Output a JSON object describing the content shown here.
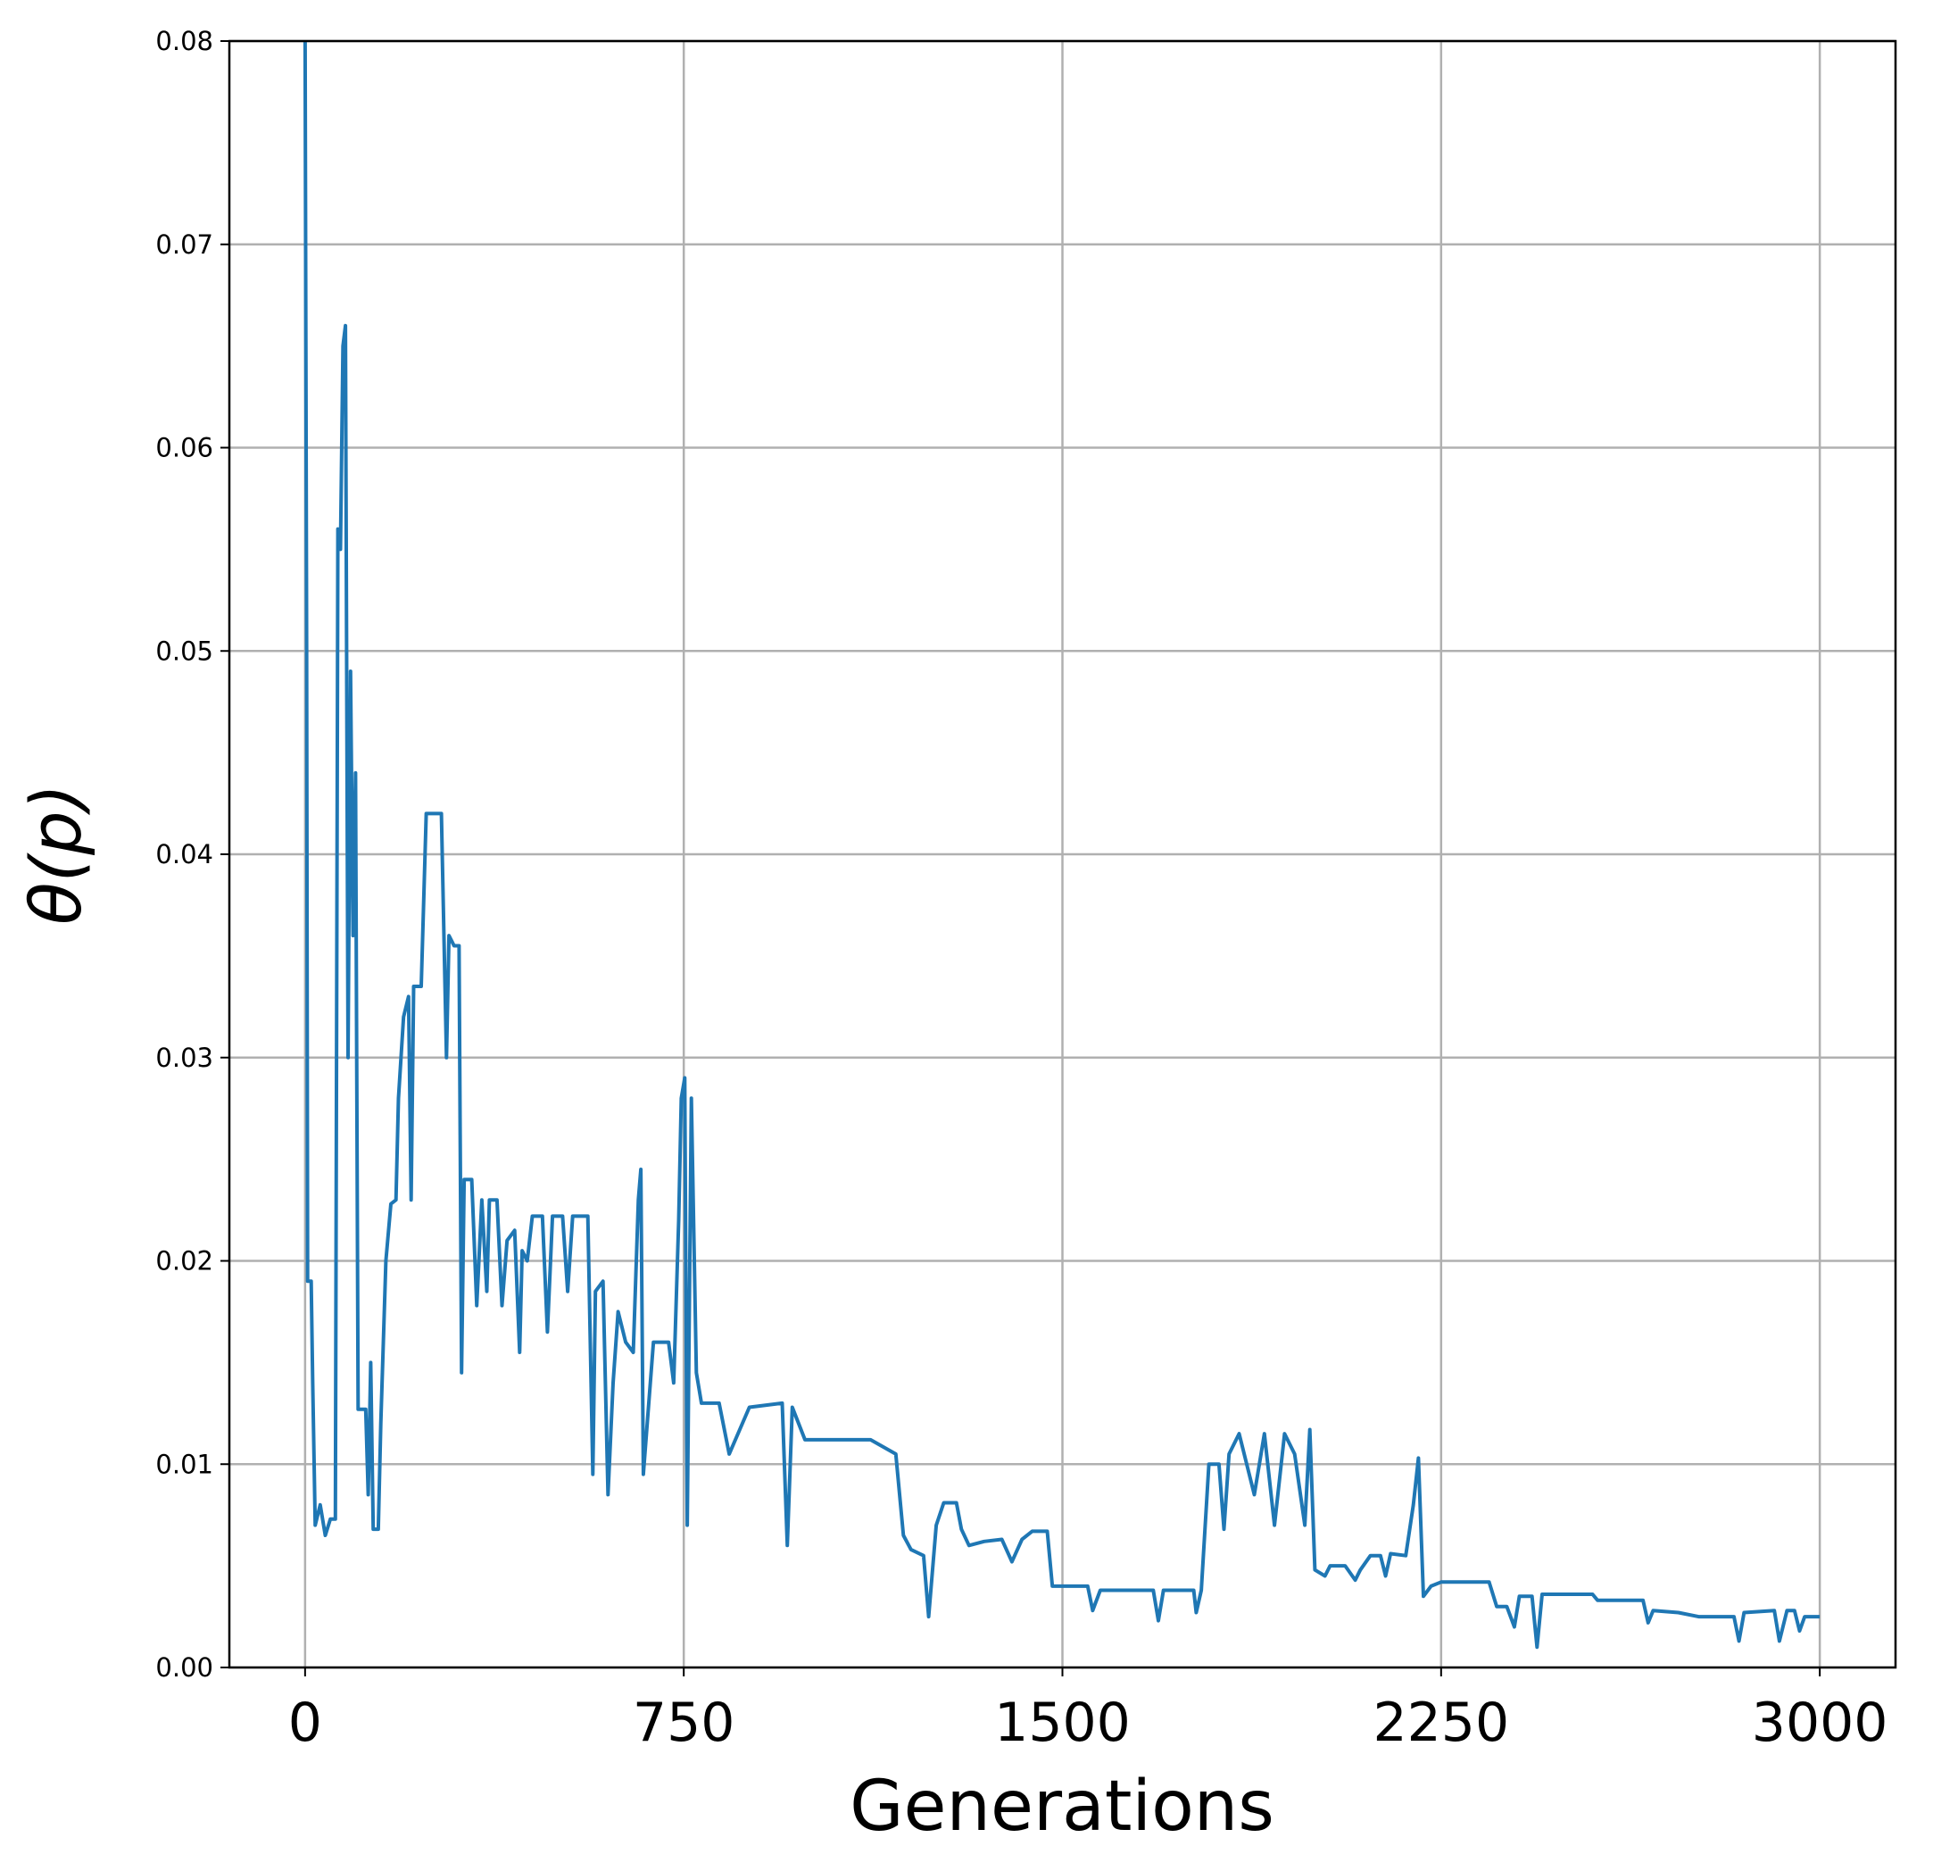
{
  "chart_data": {
    "type": "line",
    "xlabel": "Generations",
    "ylabel": "θ(p)",
    "xlim": [
      -150,
      3150
    ],
    "ylim": [
      0,
      0.08
    ],
    "xticks": [
      0,
      750,
      1500,
      2250,
      3000
    ],
    "yticks": [
      {
        "value": 0,
        "label": "0.00"
      },
      {
        "value": 0.01,
        "label": "0.01"
      },
      {
        "value": 0.02,
        "label": "0.02"
      },
      {
        "value": 0.03,
        "label": "0.03"
      },
      {
        "value": 0.04,
        "label": "0.04"
      },
      {
        "value": 0.05,
        "label": "0.05"
      },
      {
        "value": 0.06,
        "label": "0.06"
      },
      {
        "value": 0.07,
        "label": "0.07"
      },
      {
        "value": 0.08,
        "label": "0.08"
      }
    ],
    "grid": true,
    "series": [
      {
        "color": "#1f77b4",
        "x": [
          0,
          3,
          5,
          12,
          15,
          20,
          30,
          40,
          50,
          60,
          65,
          70,
          75,
          80,
          85,
          90,
          95,
          100,
          105,
          120,
          125,
          130,
          135,
          145,
          150,
          160,
          170,
          180,
          185,
          195,
          205,
          210,
          215,
          230,
          240,
          270,
          280,
          285,
          295,
          305,
          310,
          315,
          330,
          340,
          350,
          360,
          365,
          380,
          390,
          400,
          415,
          425,
          430,
          440,
          450,
          470,
          480,
          490,
          510,
          520,
          530,
          545,
          560,
          570,
          575,
          590,
          600,
          610,
          620,
          635,
          650,
          660,
          665,
          670,
          690,
          720,
          730,
          740,
          745,
          752,
          757,
          765,
          775,
          785,
          820,
          840,
          880,
          945,
          955,
          965,
          990,
          1120,
          1170,
          1185,
          1200,
          1225,
          1235,
          1250,
          1265,
          1290,
          1300,
          1315,
          1345,
          1380,
          1400,
          1420,
          1440,
          1470,
          1480,
          1550,
          1560,
          1575,
          1680,
          1690,
          1700,
          1760,
          1765,
          1775,
          1790,
          1810,
          1820,
          1830,
          1850,
          1880,
          1900,
          1920,
          1940,
          1960,
          1980,
          1990,
          2000,
          2020,
          2030,
          2060,
          2080,
          2090,
          2110,
          2130,
          2140,
          2150,
          2180,
          2195,
          2205,
          2215,
          2230,
          2250,
          2345,
          2360,
          2380,
          2395,
          2405,
          2430,
          2440,
          2450,
          2550,
          2560,
          2650,
          2660,
          2670,
          2720,
          2760,
          2830,
          2840,
          2850,
          2910,
          2920,
          2935,
          2950,
          2960,
          2970,
          3000
        ],
        "values": [
          0.08,
          0.05,
          0.019,
          0.019,
          0.014,
          0.007,
          0.008,
          0.0065,
          0.0073,
          0.0073,
          0.056,
          0.055,
          0.065,
          0.066,
          0.03,
          0.049,
          0.036,
          0.044,
          0.0127,
          0.0127,
          0.0085,
          0.015,
          0.0068,
          0.0068,
          0.012,
          0.02,
          0.0228,
          0.023,
          0.028,
          0.032,
          0.033,
          0.023,
          0.0335,
          0.0335,
          0.042,
          0.042,
          0.03,
          0.036,
          0.0355,
          0.0355,
          0.0145,
          0.024,
          0.024,
          0.0178,
          0.023,
          0.0185,
          0.023,
          0.023,
          0.0178,
          0.021,
          0.0215,
          0.0155,
          0.0205,
          0.02,
          0.0222,
          0.0222,
          0.0165,
          0.0222,
          0.0222,
          0.0185,
          0.0222,
          0.0222,
          0.0222,
          0.0095,
          0.0185,
          0.019,
          0.0085,
          0.014,
          0.0175,
          0.016,
          0.0155,
          0.023,
          0.0245,
          0.0095,
          0.016,
          0.016,
          0.014,
          0.022,
          0.028,
          0.029,
          0.007,
          0.028,
          0.0145,
          0.013,
          0.013,
          0.0105,
          0.0128,
          0.013,
          0.006,
          0.0128,
          0.0112,
          0.0112,
          0.0105,
          0.0065,
          0.0058,
          0.0055,
          0.0025,
          0.007,
          0.0081,
          0.0081,
          0.0068,
          0.006,
          0.0062,
          0.0063,
          0.0052,
          0.0063,
          0.0067,
          0.0067,
          0.004,
          0.004,
          0.0028,
          0.0038,
          0.0038,
          0.0023,
          0.0038,
          0.0038,
          0.0027,
          0.0038,
          0.01,
          0.01,
          0.0068,
          0.0105,
          0.0115,
          0.0085,
          0.0115,
          0.007,
          0.0115,
          0.0105,
          0.007,
          0.0117,
          0.0048,
          0.0045,
          0.005,
          0.005,
          0.0043,
          0.0048,
          0.0055,
          0.0055,
          0.0045,
          0.0056,
          0.0055,
          0.008,
          0.0103,
          0.0035,
          0.004,
          0.0042,
          0.0042,
          0.003,
          0.003,
          0.002,
          0.0035,
          0.0035,
          0.001,
          0.0036,
          0.0036,
          0.0033,
          0.0033,
          0.0022,
          0.0028,
          0.0027,
          0.0025,
          0.0025,
          0.0013,
          0.0027,
          0.0028,
          0.0013,
          0.0028,
          0.0028,
          0.0018,
          0.0025,
          0.0025
        ]
      }
    ]
  }
}
